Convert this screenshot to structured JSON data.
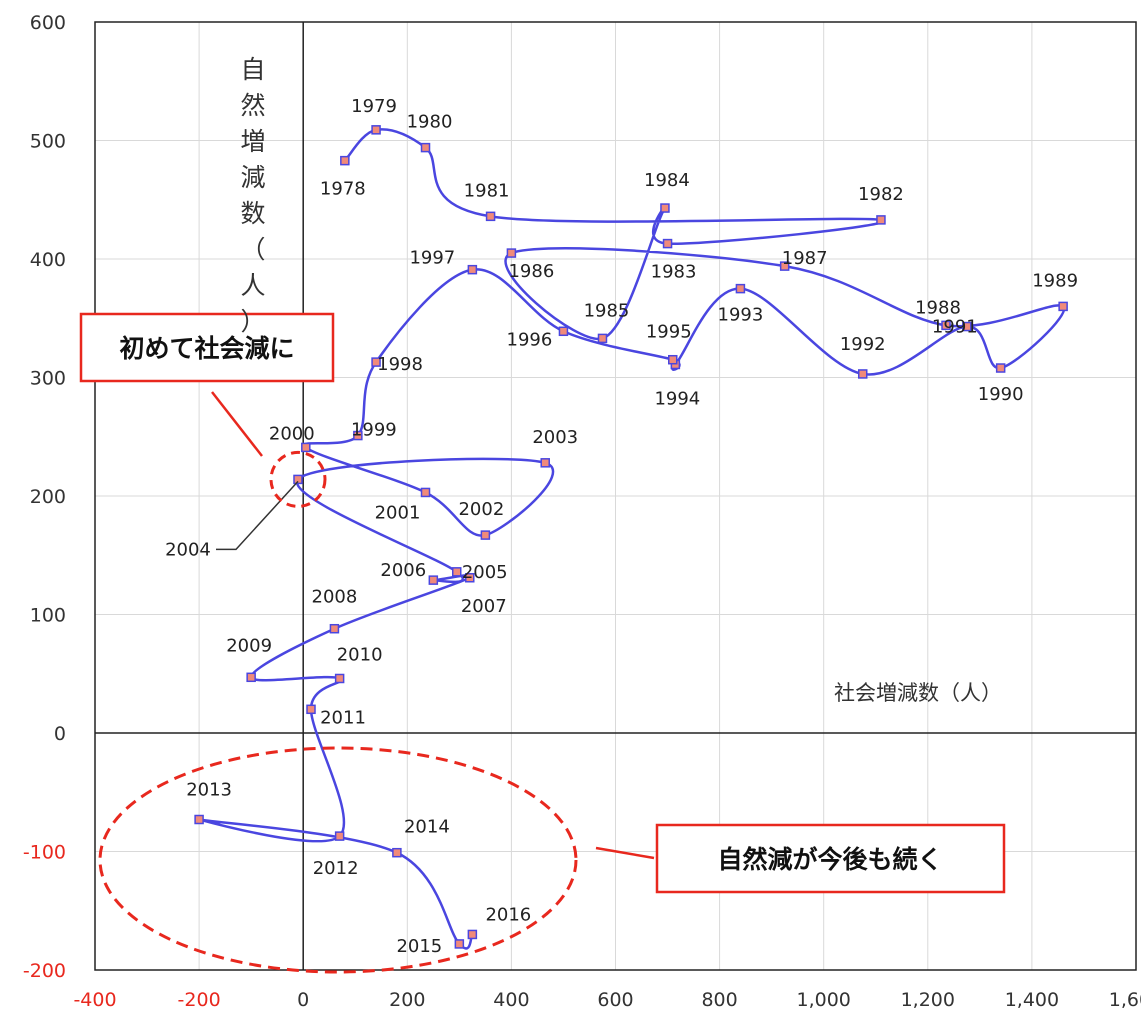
{
  "chart_data": {
    "type": "line",
    "ylabel": "自然増減数（人）",
    "xlabel": "社会増減数（人）",
    "xlim": [
      -400,
      1600
    ],
    "ylim": [
      -200,
      600
    ],
    "x_ticks": [
      "-400",
      "-200",
      "0",
      "200",
      "400",
      "600",
      "800",
      "1,000",
      "1,200",
      "1,400",
      "1,600"
    ],
    "y_ticks": [
      "600",
      "500",
      "400",
      "300",
      "200",
      "100",
      "0",
      "-100",
      "-200"
    ],
    "x_tick_values": [
      -400,
      -200,
      0,
      200,
      400,
      600,
      800,
      1000,
      1200,
      1400,
      1600
    ],
    "y_tick_values": [
      600,
      500,
      400,
      300,
      200,
      100,
      0,
      -100,
      -200
    ],
    "grid": true,
    "line_color": "#4a46e0",
    "marker_color": "#f08a7a",
    "negative_tick_color": "#e8281e",
    "points": [
      {
        "label": "1978",
        "x": 80,
        "y": 483
      },
      {
        "label": "1979",
        "x": 140,
        "y": 509
      },
      {
        "label": "1980",
        "x": 235,
        "y": 494
      },
      {
        "label": "1981",
        "x": 360,
        "y": 436
      },
      {
        "label": "1982",
        "x": 1110,
        "y": 433
      },
      {
        "label": "1983",
        "x": 700,
        "y": 413
      },
      {
        "label": "1984",
        "x": 695,
        "y": 443
      },
      {
        "label": "1985",
        "x": 575,
        "y": 333
      },
      {
        "label": "1986",
        "x": 400,
        "y": 405
      },
      {
        "label": "1987",
        "x": 925,
        "y": 394
      },
      {
        "label": "1988",
        "x": 1235,
        "y": 344
      },
      {
        "label": "1989",
        "x": 1460,
        "y": 360
      },
      {
        "label": "1990",
        "x": 1340,
        "y": 308
      },
      {
        "label": "1991",
        "x": 1275,
        "y": 343
      },
      {
        "label": "1992",
        "x": 1075,
        "y": 303
      },
      {
        "label": "1993",
        "x": 840,
        "y": 375
      },
      {
        "label": "1994",
        "x": 715,
        "y": 311
      },
      {
        "label": "1995",
        "x": 710,
        "y": 315
      },
      {
        "label": "1996",
        "x": 500,
        "y": 339
      },
      {
        "label": "1997",
        "x": 325,
        "y": 391
      },
      {
        "label": "1998",
        "x": 140,
        "y": 313
      },
      {
        "label": "1999",
        "x": 105,
        "y": 251
      },
      {
        "label": "2000",
        "x": 5,
        "y": 241
      },
      {
        "label": "2001",
        "x": 235,
        "y": 203
      },
      {
        "label": "2002",
        "x": 350,
        "y": 167
      },
      {
        "label": "2003",
        "x": 465,
        "y": 228
      },
      {
        "label": "2004",
        "x": -10,
        "y": 214
      },
      {
        "label": "2005",
        "x": 295,
        "y": 136
      },
      {
        "label": "2006",
        "x": 250,
        "y": 129
      },
      {
        "label": "2007",
        "x": 320,
        "y": 131
      },
      {
        "label": "2008",
        "x": 60,
        "y": 88
      },
      {
        "label": "2009",
        "x": -100,
        "y": 47
      },
      {
        "label": "2010",
        "x": 70,
        "y": 46
      },
      {
        "label": "2011",
        "x": 15,
        "y": 20
      },
      {
        "label": "2012",
        "x": 70,
        "y": -87
      },
      {
        "label": "2013",
        "x": -200,
        "y": -73
      },
      {
        "label": "2014",
        "x": 180,
        "y": -101
      },
      {
        "label": "2015",
        "x": 300,
        "y": -178
      },
      {
        "label": "2016",
        "x": 325,
        "y": -170
      }
    ],
    "annotations": [
      {
        "text": "初めて社会減に"
      },
      {
        "text": "自然減が今後も続く"
      }
    ]
  }
}
